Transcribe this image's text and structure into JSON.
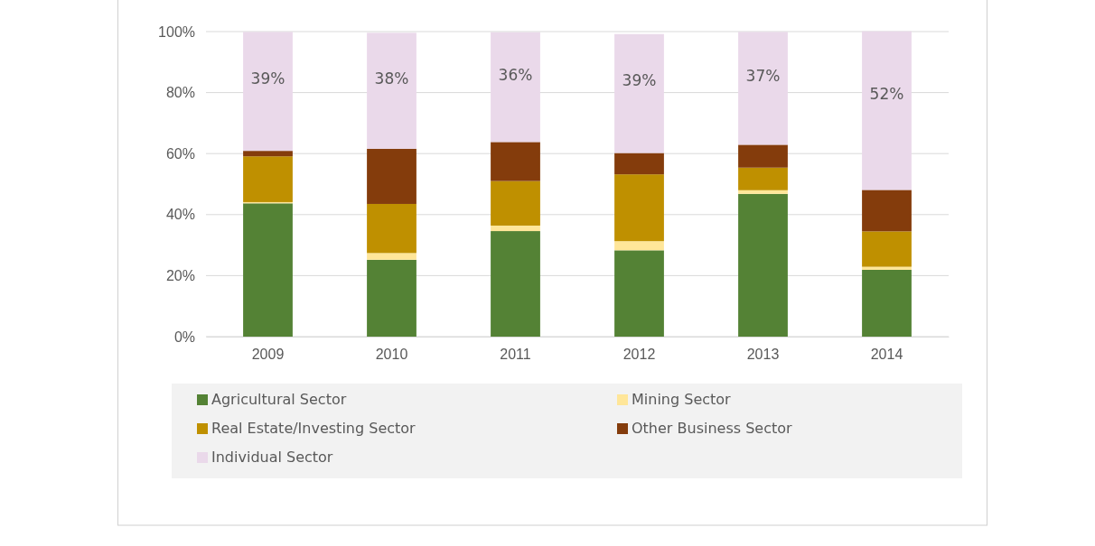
{
  "chart_data": {
    "type": "bar",
    "stacked": true,
    "categories": [
      "2009",
      "2010",
      "2011",
      "2012",
      "2013",
      "2014"
    ],
    "series": [
      {
        "name": "Agricultural Sector",
        "color": "#548235",
        "values": [
          43.7,
          25.2,
          34.6,
          28.3,
          46.8,
          21.9
        ]
      },
      {
        "name": "Mining Sector",
        "color": "#ffe699",
        "values": [
          0.4,
          2.2,
          1.8,
          3.0,
          1.2,
          1.0
        ]
      },
      {
        "name": "Real Estate/Investing Sector",
        "color": "#bf9000",
        "values": [
          15.0,
          16.1,
          14.6,
          21.9,
          7.4,
          11.6
        ]
      },
      {
        "name": "Other Business Sector",
        "color": "#843c0c",
        "values": [
          1.8,
          18.1,
          12.8,
          7.0,
          7.5,
          13.6
        ]
      },
      {
        "name": "Individual Sector",
        "color": "#ead9ea",
        "values": [
          39,
          38,
          36,
          39,
          37,
          52
        ],
        "value_labels": [
          "39%",
          "38%",
          "36%",
          "39%",
          "37%",
          "52%"
        ]
      }
    ],
    "ylim": [
      0,
      100
    ],
    "yticks": [
      {
        "value": 0,
        "label": "0%"
      },
      {
        "value": 20,
        "label": "20%"
      },
      {
        "value": 40,
        "label": "40%"
      },
      {
        "value": 60,
        "label": "60%"
      },
      {
        "value": 80,
        "label": "80%"
      },
      {
        "value": 100,
        "label": "100%"
      }
    ],
    "grid": "y",
    "legend": "bottom"
  }
}
